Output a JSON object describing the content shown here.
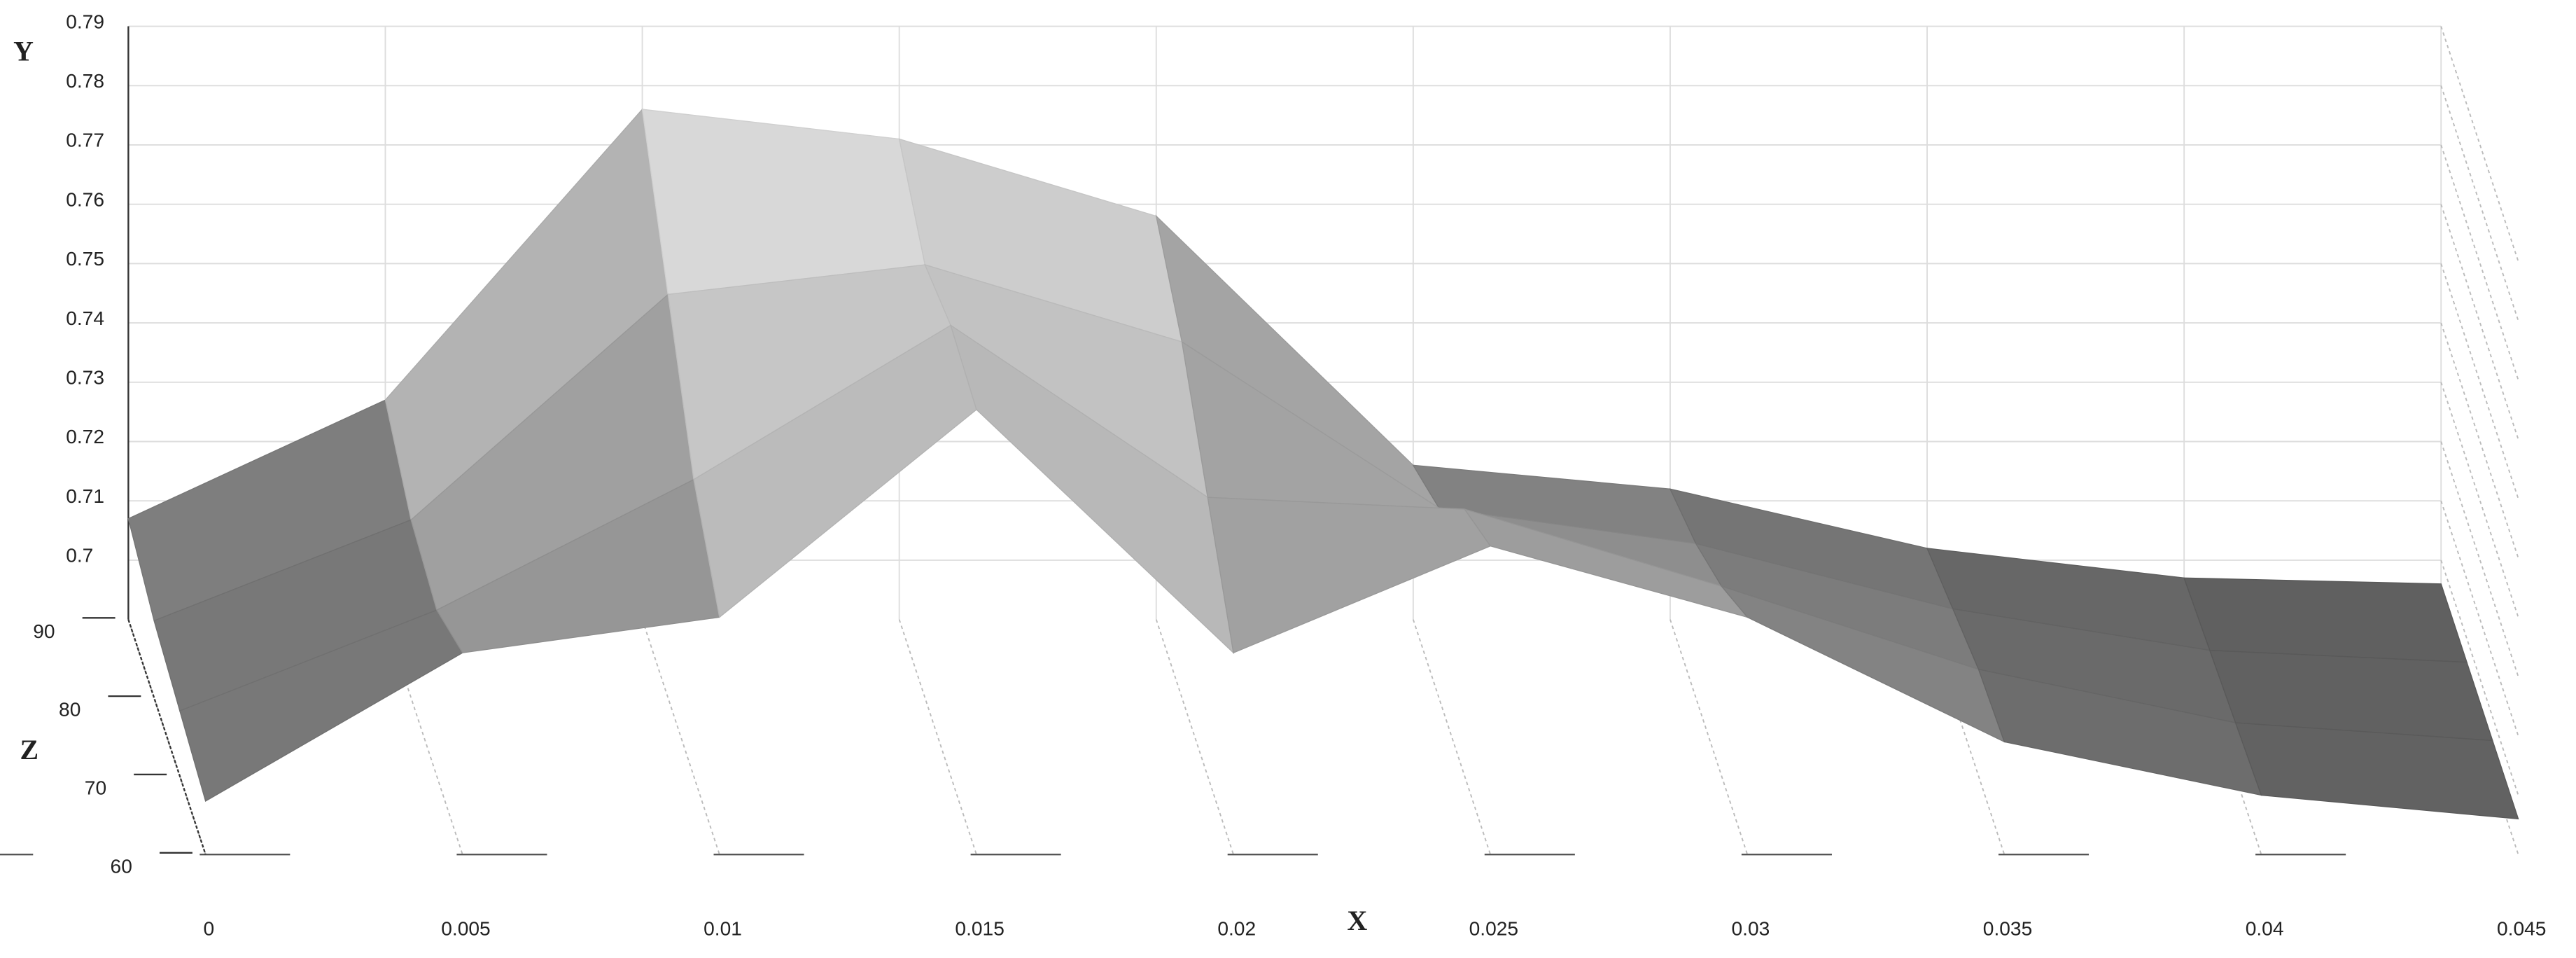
{
  "chart_data": {
    "type": "surface",
    "xlabel": "X",
    "ylabel": "Y",
    "zlabel": "Z",
    "xlim": [
      0,
      0.045
    ],
    "ylim": [
      0.69,
      0.79
    ],
    "zlim": [
      60,
      90
    ],
    "xticks": [
      0,
      0.005,
      0.01,
      0.015,
      0.02,
      0.025,
      0.03,
      0.035,
      0.04,
      0.045
    ],
    "yticks": [
      0.7,
      0.71,
      0.72,
      0.73,
      0.74,
      0.75,
      0.76,
      0.77,
      0.78,
      0.79
    ],
    "zticks": [
      60,
      70,
      80,
      90
    ],
    "grid": true,
    "surface": {
      "x": [
        0,
        0.005,
        0.01,
        0.015,
        0.02,
        0.025,
        0.03,
        0.035,
        0.04,
        0.045
      ],
      "z": [
        90,
        80,
        70,
        60
      ],
      "y": [
        [
          0.707,
          0.727,
          0.776,
          0.771,
          0.758,
          0.716,
          0.712,
          0.702,
          0.697,
          0.696
        ],
        [
          0.703,
          0.72,
          0.758,
          0.763,
          0.75,
          0.722,
          0.716,
          0.705,
          0.698,
          0.696
        ],
        [
          0.701,
          0.718,
          0.74,
          0.766,
          0.737,
          0.735,
          0.722,
          0.708,
          0.699,
          0.696
        ],
        [
          0.699,
          0.724,
          0.73,
          0.765,
          0.724,
          0.742,
          0.73,
          0.709,
          0.7,
          0.696
        ]
      ]
    }
  }
}
